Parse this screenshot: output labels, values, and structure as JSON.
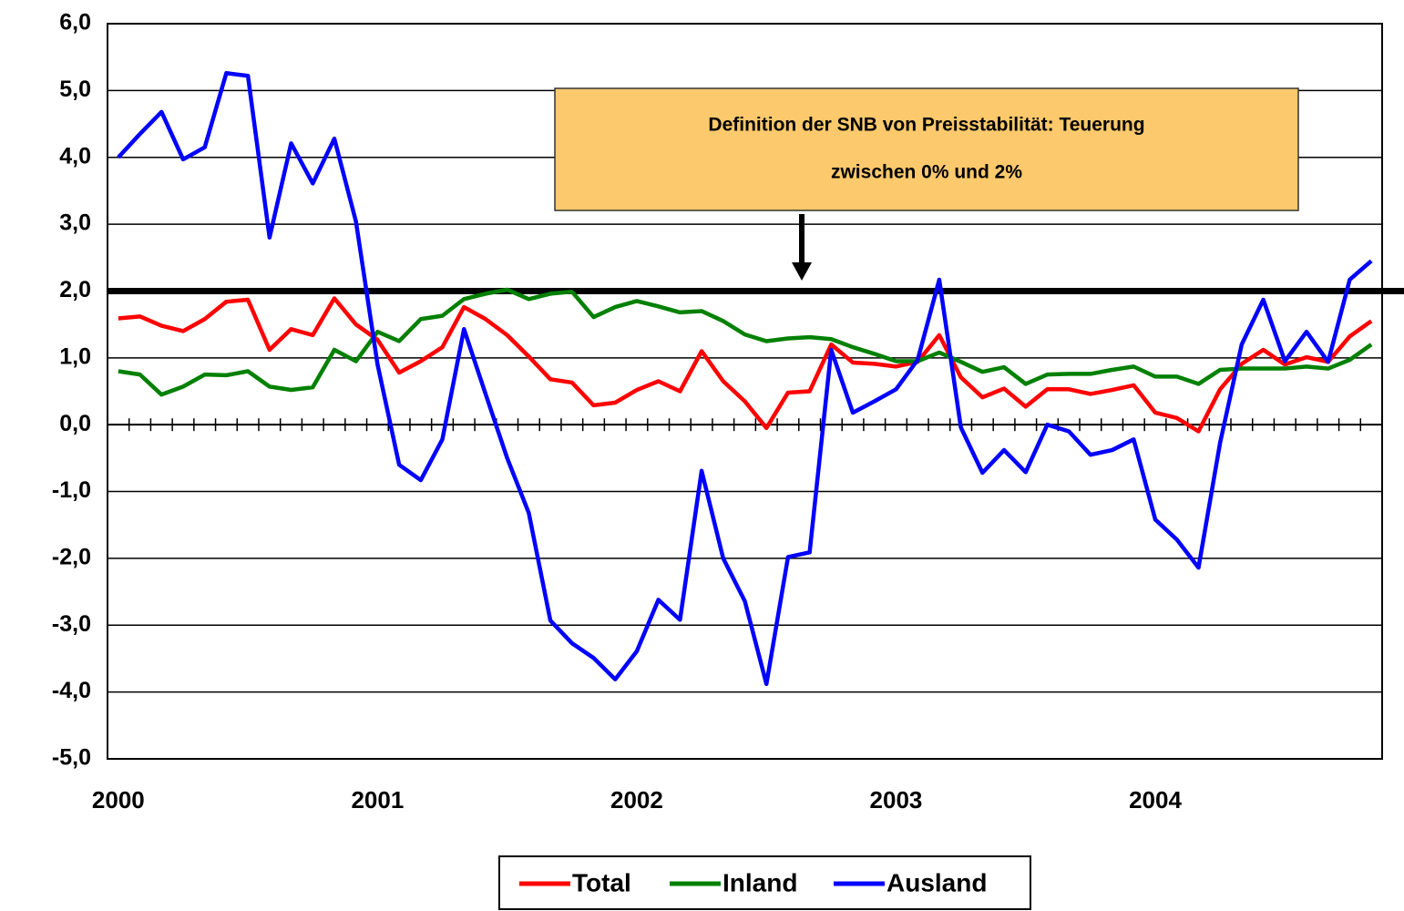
{
  "chart_data": {
    "type": "line",
    "categories": [
      "2000",
      null,
      null,
      null,
      null,
      null,
      null,
      null,
      null,
      null,
      null,
      null,
      "2001",
      null,
      null,
      null,
      null,
      null,
      null,
      null,
      null,
      null,
      null,
      null,
      "2002",
      null,
      null,
      null,
      null,
      null,
      null,
      null,
      null,
      null,
      null,
      null,
      "2003",
      null,
      null,
      null,
      null,
      null,
      null,
      null,
      null,
      null,
      null,
      null,
      "2004",
      null,
      null,
      null,
      null,
      null,
      null,
      null,
      null,
      null,
      null
    ],
    "series": [
      {
        "name": "Total",
        "color": "#ff0000",
        "values": [
          1.59,
          1.62,
          1.48,
          1.4,
          1.58,
          1.84,
          1.87,
          1.12,
          1.43,
          1.34,
          1.89,
          1.5,
          1.27,
          0.78,
          0.95,
          1.16,
          1.76,
          1.58,
          1.34,
          1.02,
          0.68,
          0.63,
          0.29,
          0.33,
          0.52,
          0.65,
          0.5,
          1.1,
          0.65,
          0.35,
          -0.05,
          0.48,
          0.5,
          1.2,
          0.93,
          0.91,
          0.87,
          0.94,
          1.34,
          0.71,
          0.41,
          0.54,
          0.27,
          0.53,
          0.53,
          0.46,
          0.52,
          0.59,
          0.18,
          0.1,
          -0.1,
          0.53,
          0.91,
          1.12,
          0.9,
          1.01,
          0.94,
          1.32,
          1.55
        ]
      },
      {
        "name": "Inland",
        "color": "#008000",
        "values": [
          0.8,
          0.75,
          0.45,
          0.57,
          0.75,
          0.74,
          0.8,
          0.57,
          0.52,
          0.56,
          1.12,
          0.95,
          1.39,
          1.25,
          1.58,
          1.63,
          1.88,
          1.96,
          2.02,
          1.88,
          1.96,
          1.99,
          1.61,
          1.76,
          1.85,
          1.77,
          1.68,
          1.7,
          1.55,
          1.35,
          1.25,
          1.29,
          1.31,
          1.28,
          1.16,
          1.06,
          0.95,
          0.95,
          1.08,
          0.94,
          0.79,
          0.86,
          0.61,
          0.75,
          0.76,
          0.76,
          0.82,
          0.87,
          0.72,
          0.72,
          0.61,
          0.82,
          0.84,
          0.84,
          0.84,
          0.87,
          0.84,
          0.97,
          1.2
        ]
      },
      {
        "name": "Ausland",
        "color": "#0000ff",
        "values": [
          4.0,
          4.35,
          4.68,
          3.97,
          4.15,
          5.26,
          5.22,
          2.8,
          4.21,
          3.61,
          4.28,
          3.04,
          0.9,
          -0.6,
          -0.83,
          -0.22,
          1.43,
          0.46,
          -0.5,
          -1.32,
          -2.93,
          -3.27,
          -3.49,
          -3.81,
          -3.39,
          -2.62,
          -2.92,
          -0.69,
          -2.0,
          -2.64,
          -3.88,
          -1.98,
          -1.91,
          1.12,
          0.18,
          0.35,
          0.53,
          0.97,
          2.17,
          -0.04,
          -0.72,
          -0.38,
          -0.71,
          0.0,
          -0.1,
          -0.45,
          -0.38,
          -0.22,
          -1.42,
          -1.72,
          -2.14,
          -0.27,
          1.2,
          1.87,
          0.95,
          1.39,
          0.94,
          2.17,
          2.45
        ]
      }
    ],
    "ylim": [
      -5,
      6
    ],
    "yticks": [
      {
        "value": -5,
        "label": "-5,0"
      },
      {
        "value": -4,
        "label": "-4,0"
      },
      {
        "value": -3,
        "label": "-3,0"
      },
      {
        "value": -2,
        "label": "-2,0"
      },
      {
        "value": -1,
        "label": "-1,0"
      },
      {
        "value": 0,
        "label": "0,0"
      },
      {
        "value": 1,
        "label": "1,0"
      },
      {
        "value": 2,
        "label": "2,0"
      },
      {
        "value": 3,
        "label": "3,0"
      },
      {
        "value": 4,
        "label": "4,0"
      },
      {
        "value": 5,
        "label": "5,0"
      },
      {
        "value": 6,
        "label": "6,0"
      }
    ],
    "grid": true,
    "threshold": 2,
    "annotation": [
      "Definition der SNB von Preisstabilität: Teuerung",
      "zwischen 0% und 2%"
    ],
    "legend": "bottom"
  }
}
